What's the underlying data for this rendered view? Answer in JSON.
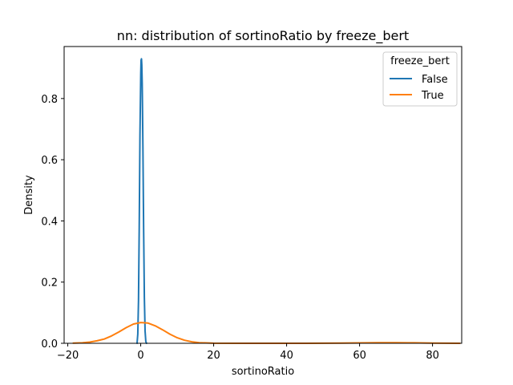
{
  "chart_data": {
    "type": "line",
    "title": "nn: distribution of sortinoRatio by freeze_bert",
    "xlabel": "sortinoRatio",
    "ylabel": "Density",
    "xlim": [
      -21,
      88
    ],
    "ylim": [
      0,
      0.97
    ],
    "xticks": [
      -20,
      0,
      20,
      40,
      60,
      80
    ],
    "xtick_labels": [
      "−20",
      "0",
      "20",
      "40",
      "60",
      "80"
    ],
    "yticks": [
      0.0,
      0.2,
      0.4,
      0.6,
      0.8
    ],
    "ytick_labels": [
      "0.0",
      "0.2",
      "0.4",
      "0.6",
      "0.8"
    ],
    "grid": false,
    "legend": {
      "title": "freeze_bert",
      "placement": "top-right"
    },
    "series": [
      {
        "name": "False",
        "color": "#1f77b4",
        "x": [
          -1.0,
          -0.8,
          -0.6,
          -0.4,
          -0.2,
          0.0,
          0.1,
          0.2,
          0.3,
          0.4,
          0.5,
          0.6,
          0.8,
          1.0,
          1.2,
          1.4,
          1.6
        ],
        "y": [
          0.0,
          0.03,
          0.14,
          0.38,
          0.68,
          0.88,
          0.925,
          0.93,
          0.91,
          0.85,
          0.76,
          0.64,
          0.37,
          0.15,
          0.04,
          0.006,
          0.0
        ]
      },
      {
        "name": "True",
        "color": "#ff7f0e",
        "x": [
          -18.5,
          -16,
          -14,
          -12,
          -10,
          -8,
          -6,
          -4,
          -2,
          0,
          2,
          4,
          6,
          8,
          10,
          12,
          14,
          16,
          20,
          30,
          40,
          50,
          55,
          60,
          65,
          70,
          75,
          80,
          87.5
        ],
        "y": [
          0.0005,
          0.0015,
          0.004,
          0.008,
          0.014,
          0.024,
          0.037,
          0.051,
          0.063,
          0.068,
          0.066,
          0.057,
          0.044,
          0.03,
          0.018,
          0.01,
          0.005,
          0.002,
          0.0003,
          0.0,
          0.0,
          0.0002,
          0.0006,
          0.0012,
          0.0018,
          0.002,
          0.0017,
          0.0008,
          0.0
        ]
      }
    ]
  }
}
